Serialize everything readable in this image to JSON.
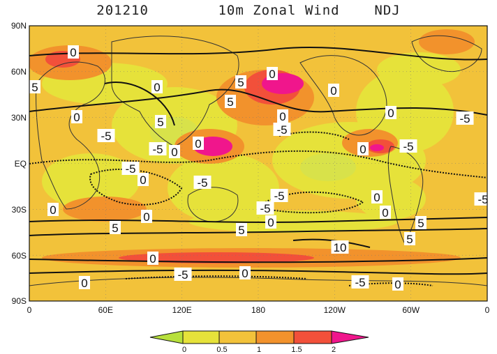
{
  "title": {
    "date": "201210",
    "variable": "10m Zonal Wind",
    "season": "NDJ"
  },
  "map": {
    "lat_labels": [
      "90N",
      "60N",
      "30N",
      "EQ",
      "30S",
      "60S",
      "90S"
    ],
    "lon_labels": [
      "0",
      "60E",
      "120E",
      "180",
      "120W",
      "60W",
      "0"
    ],
    "contour_labels": [
      "0",
      "5",
      "0",
      "5",
      "5",
      "0",
      "5",
      "0",
      "0",
      "0",
      "-5",
      "0",
      "-5",
      "-5",
      "-5",
      "0",
      "0",
      "-5",
      "0",
      "-5",
      "0",
      "-5",
      "-5",
      "0",
      "-5",
      "0",
      "5",
      "0",
      "0",
      "5",
      "10",
      "0",
      "5",
      "5",
      "-5",
      "0",
      "0",
      "0",
      "-5",
      "0",
      "-5"
    ],
    "colors": {
      "lowest": "#b7e03c",
      "band_0_05": "#e6e23a",
      "band_05_1": "#f2c23a",
      "band_1_15": "#f2922c",
      "band_15_2": "#f2503a",
      "above_2": "#f0168c",
      "contour": "#111111"
    }
  },
  "colorbar": {
    "ticks": [
      "0",
      "0.5",
      "1",
      "1.5",
      "2"
    ]
  }
}
